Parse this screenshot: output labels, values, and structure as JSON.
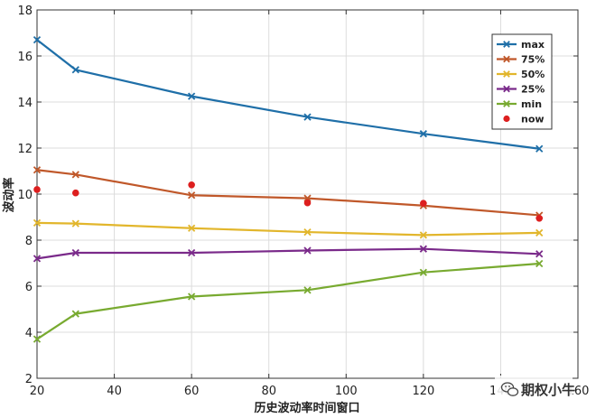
{
  "chart_data": {
    "type": "line",
    "xlabel": "历史波动率时间窗口",
    "ylabel": "波动率",
    "xlim": [
      20,
      160
    ],
    "ylim": [
      2,
      18
    ],
    "xticks": [
      20,
      40,
      60,
      80,
      100,
      120,
      140,
      160
    ],
    "yticks": [
      2,
      4,
      6,
      8,
      10,
      12,
      14,
      16,
      18
    ],
    "grid": true,
    "legend_position": "top-right",
    "x": [
      20,
      30,
      60,
      90,
      120,
      150
    ],
    "series": [
      {
        "name": "max",
        "color": "#1f6fa8",
        "marker": "x",
        "values": [
          16.7,
          15.4,
          14.25,
          13.35,
          12.62,
          11.97
        ]
      },
      {
        "name": "75%",
        "color": "#c0582a",
        "marker": "x",
        "values": [
          11.05,
          10.85,
          9.95,
          9.82,
          9.5,
          9.08
        ]
      },
      {
        "name": "50%",
        "color": "#e2b62c",
        "marker": "x",
        "values": [
          8.75,
          8.72,
          8.52,
          8.35,
          8.22,
          8.32
        ]
      },
      {
        "name": "25%",
        "color": "#7a2a8a",
        "marker": "x",
        "values": [
          7.2,
          7.45,
          7.45,
          7.55,
          7.62,
          7.4
        ]
      },
      {
        "name": "min",
        "color": "#78aa30",
        "marker": "x",
        "values": [
          3.7,
          4.8,
          5.55,
          5.83,
          6.6,
          6.98
        ]
      },
      {
        "name": "now",
        "color": "#dd1f1f",
        "marker": "dot",
        "scatter": true,
        "values": [
          10.2,
          10.05,
          10.4,
          9.62,
          9.6,
          8.95
        ]
      }
    ]
  },
  "watermark": {
    "text": "期权小牛",
    "icon": "wechat-icon"
  }
}
